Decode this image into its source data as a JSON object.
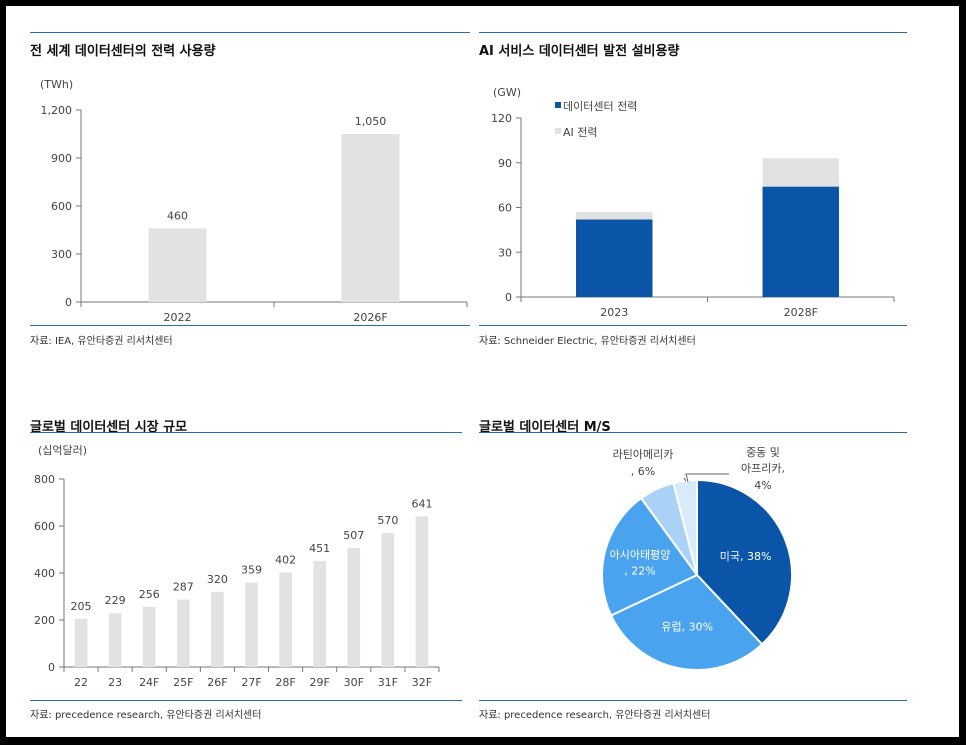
{
  "panels": [
    {
      "title": "전 세계 데이터센터의 전력 사용량",
      "source": "자료: IEA, 유안타증권 리서치센터"
    },
    {
      "title": "AI 서비스 데이터센터 발전 설비용량",
      "source": "자료: Schneider Electric, 유안타증권 리서치센터"
    },
    {
      "title": "글로벌 데이터센터 시장 규모",
      "source": "자료: precedence research, 유안타증권 리서치센터"
    },
    {
      "title": "글로벌 데이터센터 M/S",
      "source": "자료: precedence research, 유안타증권 리서치센터"
    }
  ],
  "colors": {
    "gray": "#e2e2e2",
    "navy": "#0a55a8",
    "mid": "#4aa3ef",
    "light": "#a9d2f6",
    "pale": "#d7ebfb",
    "line": "#2b6cb0"
  },
  "chart_data": [
    {
      "type": "bar",
      "unit": "(TWh)",
      "categories": [
        "2022",
        "2026F"
      ],
      "values": [
        460,
        1050
      ],
      "value_labels": [
        "460",
        "1,050"
      ],
      "ylim": [
        0,
        1200
      ],
      "yticks": [
        0,
        300,
        600,
        900,
        1200
      ],
      "ytick_labels": [
        "0",
        "300",
        "600",
        "900",
        "1,200"
      ],
      "grid": false
    },
    {
      "type": "bar",
      "stacked": true,
      "unit": "(GW)",
      "categories": [
        "2023",
        "2028F"
      ],
      "series": [
        {
          "name": "데이터센터 전력",
          "values": [
            52,
            74
          ],
          "color": "#0a55a8"
        },
        {
          "name": "AI 전력",
          "values": [
            5,
            19
          ],
          "color": "#e2e2e2"
        }
      ],
      "ylim": [
        0,
        120
      ],
      "yticks": [
        0,
        30,
        60,
        90,
        120
      ],
      "legend_position": "top-left",
      "grid": false
    },
    {
      "type": "bar",
      "unit": "(십억달러)",
      "categories": [
        "22",
        "23",
        "24F",
        "25F",
        "26F",
        "27F",
        "28F",
        "29F",
        "30F",
        "31F",
        "32F"
      ],
      "values": [
        205,
        229,
        256,
        287,
        320,
        359,
        402,
        451,
        507,
        570,
        641
      ],
      "ylim": [
        0,
        800
      ],
      "yticks": [
        0,
        200,
        400,
        600,
        800
      ],
      "grid": false
    },
    {
      "type": "pie",
      "slices": [
        {
          "label": "미국, 38%",
          "value": 38,
          "color": "#0a55a8"
        },
        {
          "label": "유럽, 30%",
          "value": 30,
          "color": "#4aa3ef"
        },
        {
          "label": "아시아태평양, 22%",
          "value": 22,
          "color": "#4aa3ef"
        },
        {
          "label": "라틴아메리카, 6%",
          "value": 6,
          "color": "#a9d2f6"
        },
        {
          "label": "중동 및 아프리카, 4%",
          "value": 4,
          "color": "#d7ebfb"
        }
      ],
      "label_lines": [
        {
          "line1": "라틴아메리카",
          "line2": ", 6%"
        },
        {
          "line1": "중동 및",
          "line2": "아프리카,",
          "line3": "4%"
        }
      ],
      "inner_labels": [
        {
          "line1": "미국, 38%"
        },
        {
          "line1": "유럽, 30%"
        },
        {
          "line1": "아시아태평양",
          "line2": ", 22%"
        }
      ]
    }
  ]
}
